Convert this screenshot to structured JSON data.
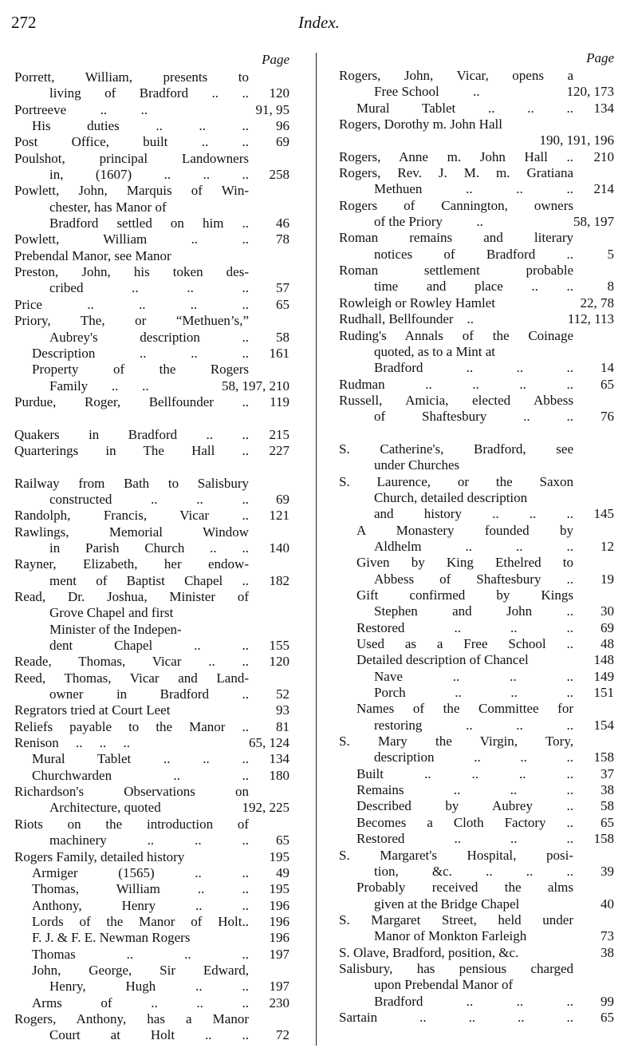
{
  "header": {
    "folio": "272",
    "title": "Index."
  },
  "columns": [
    {
      "page_label": "Page",
      "lines": [
        {
          "t": "Porrett, William, presents to",
          "i": 0
        },
        {
          "t": "living of Bradford ..      ..",
          "p": "120",
          "i": 2
        },
        {
          "t": "Portreeve          ..          ..",
          "p": "91, 95",
          "i": 0
        },
        {
          "t": "His duties   ..   ..   ..",
          "p": "96",
          "i": 1
        },
        {
          "t": "Post Office, built   ..   ..",
          "p": "69",
          "i": 0
        },
        {
          "t": "Poulshot, principal Landowners",
          "i": 0
        },
        {
          "t": "in, (1607)   ..   ..   ..",
          "p": "258",
          "i": 2
        },
        {
          "t": "Powlett, John, Marquis of Win-",
          "i": 0
        },
        {
          "t": "chester, has Manor of",
          "i": 2
        },
        {
          "t": "Bradford settled on him ..",
          "p": "46",
          "i": 2
        },
        {
          "t": "Powlett, William   ..   ..",
          "p": "78",
          "i": 0
        },
        {
          "t": "Prebendal Manor, see Manor",
          "i": 0
        },
        {
          "t": "Preston, John, his token des-",
          "i": 0
        },
        {
          "t": "cribed   ..   ..   ..",
          "p": "57",
          "i": 2
        },
        {
          "t": "Price   ..   ..   ..   ..",
          "p": "65",
          "i": 0
        },
        {
          "t": "Priory, The, or “Methuen’s,”",
          "i": 0
        },
        {
          "t": "Aubrey's description   ..",
          "p": "58",
          "i": 2
        },
        {
          "t": "Description   ..   ..   ..",
          "p": "161",
          "i": 1
        },
        {
          "t": "Property of the Rogers",
          "i": 1
        },
        {
          "t": "Family       ..       ..",
          "p": "58, 197, 210",
          "i": 2
        },
        {
          "t": "Purdue, Roger, Bellfounder   ..",
          "p": "119",
          "i": 0
        },
        {
          "t": ""
        },
        {
          "t": "Quakers in Bradford   ..   ..",
          "p": "215",
          "i": 0
        },
        {
          "t": "Quarterings in The Hall   ..",
          "p": "227",
          "i": 0
        },
        {
          "t": ""
        },
        {
          "t": "Railway from Bath to Salisbury",
          "i": 0
        },
        {
          "t": "constructed ..   ..   ..",
          "p": "69",
          "i": 2
        },
        {
          "t": "Randolph, Francis, Vicar   ..",
          "p": "121",
          "i": 0
        },
        {
          "t": "Rawlings, Memorial Window",
          "i": 0
        },
        {
          "t": "in Parish Church ..   ..",
          "p": "140",
          "i": 2
        },
        {
          "t": "Rayner, Elizabeth, her endow-",
          "i": 0
        },
        {
          "t": "ment of Baptist Chapel   ..",
          "p": "182",
          "i": 2
        },
        {
          "t": "Read, Dr. Joshua, Minister of",
          "i": 0
        },
        {
          "t": "Grove Chapel and first",
          "i": 2
        },
        {
          "t": "Minister of the Indepen-",
          "i": 2
        },
        {
          "t": "dent Chapel   ..   ..",
          "p": "155",
          "i": 2
        },
        {
          "t": "Reade, Thomas, Vicar ..   ..",
          "p": "120",
          "i": 0
        },
        {
          "t": "Reed, Thomas, Vicar and Land-",
          "i": 0
        },
        {
          "t": "owner in Bradford   ..",
          "p": "52",
          "i": 2
        },
        {
          "t": "Regrators tried at Court Leet",
          "p": "93",
          "i": 0
        },
        {
          "t": "Reliefs payable to the Manor ..",
          "p": "81",
          "i": 0
        },
        {
          "t": "Renison     ..     ..     ..",
          "p": "65, 124",
          "i": 0
        },
        {
          "t": "Mural Tablet ..   ..   ..",
          "p": "134",
          "i": 1
        },
        {
          "t": "Churchwarden   ..   ..",
          "p": "180",
          "i": 1
        },
        {
          "t": "Richardson's Observations on",
          "i": 0
        },
        {
          "t": "Architecture, quoted",
          "p": "192, 225",
          "i": 2
        },
        {
          "t": "Riots on the introduction of",
          "i": 0
        },
        {
          "t": "machinery ..   ..   ..",
          "p": "65",
          "i": 2
        },
        {
          "t": "Rogers Family, detailed history",
          "p": "195",
          "i": 0
        },
        {
          "t": "Armiger (1565)   ..   ..",
          "p": "49",
          "i": 1
        },
        {
          "t": "Thomas, William   ..   ..",
          "p": "195",
          "i": 1
        },
        {
          "t": "Anthony, Henry   ..   ..",
          "p": "196",
          "i": 1
        },
        {
          "t": "Lords of the Manor of Holt..",
          "p": "196",
          "i": 1
        },
        {
          "t": "F. J. & F. E. Newman Rogers",
          "p": "196",
          "i": 1
        },
        {
          "t": "Thomas   ..   ..   ..",
          "p": "197",
          "i": 1
        },
        {
          "t": "John, George, Sir Edward,",
          "i": 1
        },
        {
          "t": "Henry, Hugh   ..   ..",
          "p": "197",
          "i": 2
        },
        {
          "t": "Arms of   ..   ..   ..",
          "p": "230",
          "i": 1
        },
        {
          "t": "Rogers, Anthony, has a Manor",
          "i": 0
        },
        {
          "t": "Court at Holt   ..   ..",
          "p": "72",
          "i": 2
        }
      ]
    },
    {
      "page_label": "Page",
      "lines": [
        {
          "t": "Rogers, John, Vicar, opens a",
          "i": 0
        },
        {
          "t": "Free School          ..",
          "p": "120, 173",
          "i": 2
        },
        {
          "t": "Mural Tablet ..   ..   ..",
          "p": "134",
          "i": 1
        },
        {
          "t": "Rogers, Dorothy m. John Hall",
          "i": 0
        },
        {
          "t": "",
          "p": "190, 191, 196",
          "i": 2
        },
        {
          "t": "Rogers, Anne m. John Hall ..",
          "p": "210",
          "i": 0
        },
        {
          "t": "Rogers, Rev. J. M. m. Gratiana",
          "i": 0
        },
        {
          "t": "Methuen   ..   ..   ..",
          "p": "214",
          "i": 2
        },
        {
          "t": "Rogers of Cannington, owners",
          "i": 0
        },
        {
          "t": "of the Priory          ..",
          "p": "58, 197",
          "i": 2
        },
        {
          "t": "Roman remains and literary",
          "i": 0
        },
        {
          "t": "notices of Bradford   ..",
          "p": "5",
          "i": 2
        },
        {
          "t": "Roman settlement probable",
          "i": 0
        },
        {
          "t": "time and place   ..   ..",
          "p": "8",
          "i": 2
        },
        {
          "t": "Rowleigh or Rowley Hamlet",
          "p": "22, 78",
          "i": 0
        },
        {
          "t": "Rudhall, Bellfounder    ..",
          "p": "112, 113",
          "i": 0
        },
        {
          "t": "Ruding's Annals of the Coinage",
          "i": 0
        },
        {
          "t": "quoted, as to a Mint at",
          "i": 2
        },
        {
          "t": "Bradford   ..   ..   ..",
          "p": "14",
          "i": 2
        },
        {
          "t": "Rudman ..   ..   ..   ..",
          "p": "65",
          "i": 0
        },
        {
          "t": "Russell, Amicia, elected Abbess",
          "i": 0
        },
        {
          "t": "of Shaftesbury   ..   ..",
          "p": "76",
          "i": 2
        },
        {
          "t": ""
        },
        {
          "t": "S. Catherine's, Bradford, see",
          "i": 0
        },
        {
          "t": "under Churches",
          "i": 2
        },
        {
          "t": "S. Laurence, or the Saxon",
          "i": 0
        },
        {
          "t": "Church, detailed description",
          "i": 2
        },
        {
          "t": "and history ..   ..   ..",
          "p": "145",
          "i": 2
        },
        {
          "t": "A Monastery founded by",
          "i": 1
        },
        {
          "t": "Aldhelm   ..   ..   ..",
          "p": "12",
          "i": 2
        },
        {
          "t": "Given by King Ethelred to",
          "i": 1
        },
        {
          "t": "Abbess of Shaftesbury   ..",
          "p": "19",
          "i": 2
        },
        {
          "t": "Gift confirmed by Kings",
          "i": 1
        },
        {
          "t": "Stephen and John   ..",
          "p": "30",
          "i": 2
        },
        {
          "t": "Restored   ..   ..   ..",
          "p": "69",
          "i": 1
        },
        {
          "t": "Used as a Free School   ..",
          "p": "48",
          "i": 1
        },
        {
          "t": "Detailed description of Chancel",
          "p": "148",
          "i": 1
        },
        {
          "t": "Nave   ..   ..   ..",
          "p": "149",
          "i": 2
        },
        {
          "t": "Porch   ..   ..   ..",
          "p": "151",
          "i": 2
        },
        {
          "t": "Names of the Committee for",
          "i": 1
        },
        {
          "t": "restoring   ..   ..   ..",
          "p": "154",
          "i": 2
        },
        {
          "t": "S. Mary the Virgin, Tory,",
          "i": 0
        },
        {
          "t": "description ..   ..   ..",
          "p": "158",
          "i": 2
        },
        {
          "t": "Built ..   ..   ..   ..",
          "p": "37",
          "i": 1
        },
        {
          "t": "Remains   ..   ..   ..",
          "p": "38",
          "i": 1
        },
        {
          "t": "Described by Aubrey   ..",
          "p": "58",
          "i": 1
        },
        {
          "t": "Becomes a Cloth Factory   ..",
          "p": "65",
          "i": 1
        },
        {
          "t": "Restored   ..   ..   ..",
          "p": "158",
          "i": 1
        },
        {
          "t": "S. Margaret's Hospital, posi-",
          "i": 0
        },
        {
          "t": "tion, &c.   ..   ..   ..",
          "p": "39",
          "i": 2
        },
        {
          "t": "Probably received the alms",
          "i": 1
        },
        {
          "t": "given at the Bridge Chapel",
          "p": "40",
          "i": 2
        },
        {
          "t": "S. Margaret Street, held under",
          "i": 0
        },
        {
          "t": "Manor of Monkton Farleigh",
          "p": "73",
          "i": 2
        },
        {
          "t": "S. Olave, Bradford, position, &c.",
          "p": "38",
          "i": 0
        },
        {
          "t": "Salisbury, has pensious charged",
          "i": 0
        },
        {
          "t": "upon Prebendal Manor of",
          "i": 2
        },
        {
          "t": "Bradford   ..   ..   ..",
          "p": "99",
          "i": 2
        },
        {
          "t": "Sartain ..   ..   ..   ..",
          "p": "65",
          "i": 0
        }
      ]
    }
  ]
}
